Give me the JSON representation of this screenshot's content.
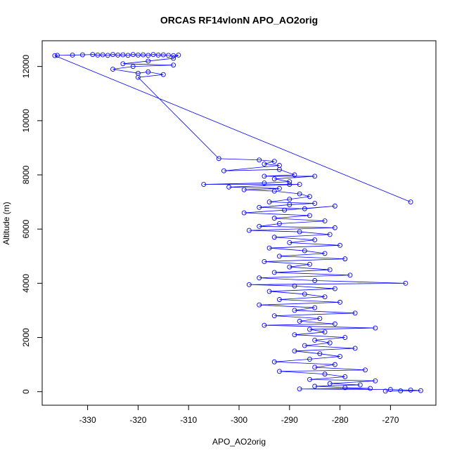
{
  "chart_data": {
    "type": "line",
    "markers": "open-circle",
    "title": "ORCAS RF14vlonN APO_AO2orig",
    "x_label": "APO_AO2orig",
    "y_label": "Altitude (m)",
    "color": "#0000ff",
    "x": [
      -266,
      -336.5,
      -336,
      -333,
      -331,
      -329,
      -328,
      -327,
      -326,
      -325,
      -324,
      -323,
      -322,
      -321,
      -320,
      -319,
      -318,
      -317,
      -316,
      -315,
      -314,
      -313,
      -312,
      -313,
      -318,
      -323,
      -313,
      -321,
      -325,
      -320,
      -318,
      -315,
      -320,
      -304,
      -296,
      -293,
      -295,
      -292,
      -303,
      -292,
      -289,
      -295,
      -285,
      -293,
      -290,
      -295,
      -307,
      -290,
      -288,
      -302,
      -292,
      -299,
      -293,
      -288,
      -286,
      -290,
      -294,
      -285,
      -290,
      -296,
      -287,
      -281,
      -291,
      -299,
      -286,
      -293,
      -283,
      -292,
      -296,
      -281,
      -298,
      -288,
      -282,
      -293,
      -285,
      -290,
      -280,
      -294,
      -287,
      -283,
      -292,
      -279,
      -295,
      -286,
      -290,
      -282,
      -293,
      -278,
      -296,
      -285,
      -267,
      -298,
      -289,
      -281,
      -294,
      -287,
      -283,
      -292,
      -280,
      -296,
      -285,
      -289,
      -277,
      -293,
      -284,
      -288,
      -281,
      -295,
      -273,
      -286,
      -283,
      -289,
      -279,
      -285,
      -282,
      -287,
      -277,
      -289,
      -284,
      -280,
      -286,
      -293,
      -281,
      -285,
      -275,
      -292,
      -283,
      -279,
      -286,
      -273,
      -282,
      -276,
      -285,
      -279,
      -274,
      -288,
      -270,
      -266,
      -264,
      -268,
      -271
    ],
    "values": [
      7000,
      12400,
      12410,
      12420,
      12430,
      12440,
      12420,
      12430,
      12410,
      12440,
      12420,
      12430,
      12410,
      12440,
      12420,
      12430,
      12410,
      12440,
      12420,
      12430,
      12410,
      12400,
      12420,
      12300,
      12200,
      12100,
      12050,
      12000,
      11900,
      11750,
      11800,
      11700,
      11600,
      8600,
      8550,
      8500,
      8400,
      8350,
      8150,
      8200,
      8000,
      7950,
      7950,
      7850,
      7750,
      7700,
      7650,
      7650,
      7650,
      7550,
      7500,
      7450,
      7400,
      7300,
      7200,
      7100,
      7000,
      6950,
      6900,
      6800,
      6750,
      6850,
      6700,
      6600,
      6500,
      6400,
      6300,
      6200,
      6100,
      6050,
      5950,
      5900,
      5800,
      5700,
      5600,
      5500,
      5400,
      5300,
      5200,
      5100,
      5000,
      4900,
      4800,
      4700,
      4600,
      4500,
      4400,
      4300,
      4200,
      4100,
      4000,
      3950,
      3900,
      3800,
      3700,
      3600,
      3500,
      3400,
      3300,
      3200,
      3100,
      3000,
      2900,
      2800,
      2700,
      2600,
      2500,
      2450,
      2350,
      2300,
      2200,
      2100,
      2000,
      1900,
      1800,
      1700,
      1600,
      1500,
      1400,
      1300,
      1200,
      1100,
      1000,
      900,
      800,
      750,
      650,
      550,
      450,
      400,
      300,
      250,
      200,
      150,
      120,
      100,
      80,
      60,
      40,
      30,
      20
    ],
    "xlim": [
      -339,
      -261
    ],
    "ylim": [
      -500,
      12950
    ],
    "xticks": [
      -330,
      -320,
      -310,
      -300,
      -290,
      -280,
      -270
    ],
    "yticks": [
      0,
      2000,
      4000,
      6000,
      8000,
      10000,
      12000
    ]
  }
}
